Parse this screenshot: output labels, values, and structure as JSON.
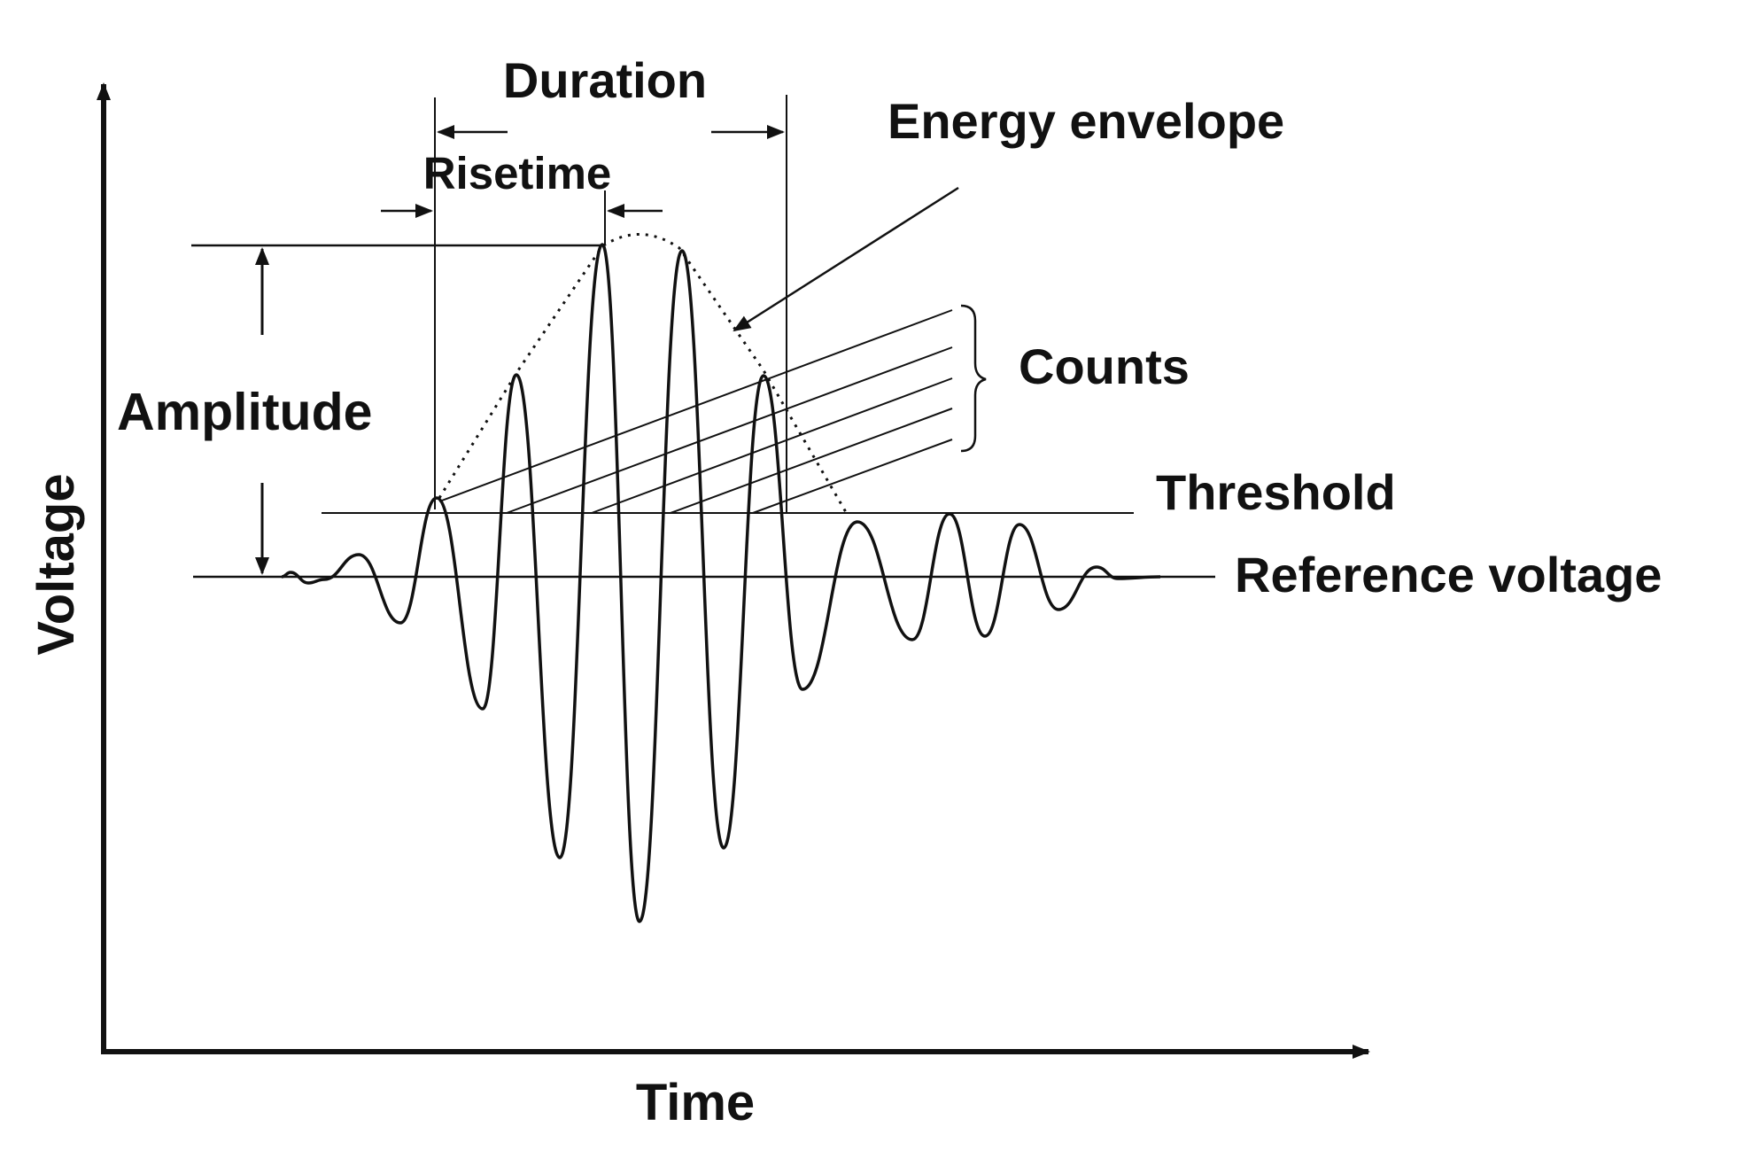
{
  "labels": {
    "duration": "Duration",
    "risetime": "Risetime",
    "energy_envelope": "Energy envelope",
    "counts": "Counts",
    "amplitude": "Amplitude",
    "threshold": "Threshold",
    "reference_voltage": "Reference voltage",
    "voltage_axis": "Voltage",
    "time_axis": "Time"
  },
  "colors": {
    "ink": "#111111",
    "background": "#ffffff"
  }
}
